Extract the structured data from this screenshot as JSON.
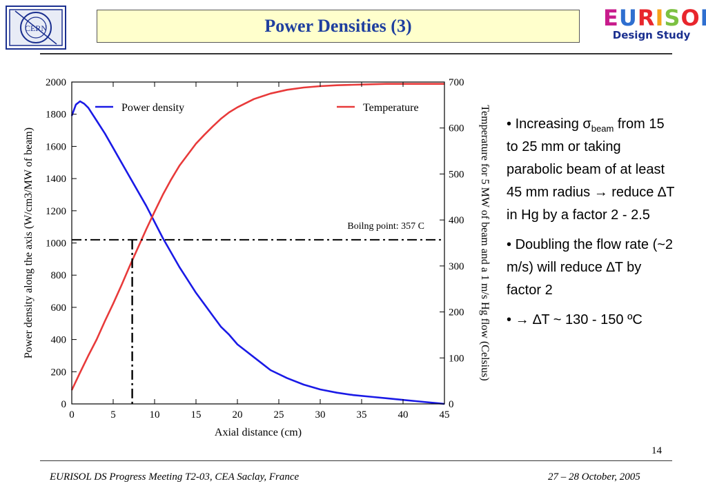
{
  "header": {
    "title": "Power Densities (3)",
    "left_logo_text": "CERN",
    "right_logo": {
      "letters": [
        {
          "ch": "E",
          "color": "#c81c8c"
        },
        {
          "ch": "U",
          "color": "#2f6fd0"
        },
        {
          "ch": "R",
          "color": "#e8262d"
        },
        {
          "ch": "I",
          "color": "#f5a31a"
        },
        {
          "ch": "S",
          "color": "#7cc142"
        },
        {
          "ch": "O",
          "color": "#e8262d"
        },
        {
          "ch": "L",
          "color": "#2f6fd0"
        }
      ],
      "subtitle": "Design Study"
    }
  },
  "bullets": {
    "b1_pre": "Increasing ",
    "b1_sigma": "σ",
    "b1_sub": "beam",
    "b1_post": " from 15 to 25 mm or taking parabolic beam of at least 45 mm radius → reduce ∆T in Hg by a factor 2 - 2.5",
    "b2": "Doubling the flow rate (~2 m/s) will reduce ∆T by factor 2",
    "b3": "→ ∆T ~ 130 - 150 ºC"
  },
  "footer": {
    "page_number": "14",
    "left": "EURISOL DS Progress Meeting T2-03, CEA Saclay, France",
    "right": "27 – 28 October, 2005"
  },
  "chart_data": {
    "type": "line",
    "xlabel": "Axial distance (cm)",
    "ylabel": "Power density along the axis (W/cm3/MW of beam)",
    "y2label": "Temperature for 5 MW of beam and a 1 m/s Hg flow (Celsius)",
    "xlim": [
      0,
      45
    ],
    "ylim": [
      0,
      2000
    ],
    "y2lim": [
      0,
      700
    ],
    "xticks": [
      0,
      5,
      10,
      15,
      20,
      25,
      30,
      35,
      40,
      45
    ],
    "yticks": [
      0,
      200,
      400,
      600,
      800,
      1000,
      1200,
      1400,
      1600,
      1800,
      2000
    ],
    "y2ticks": [
      0,
      100,
      200,
      300,
      400,
      500,
      600,
      700
    ],
    "legend": [
      {
        "name": "Power density",
        "color": "#1a1ae6"
      },
      {
        "name": "Temperature",
        "color": "#e83a3a"
      }
    ],
    "series": [
      {
        "name": "Power density",
        "axis": "left",
        "color": "#1a1ae6",
        "x": [
          0,
          0.5,
          1,
          1.5,
          2,
          3,
          4,
          5,
          6,
          7,
          8,
          9,
          10,
          11,
          12,
          13,
          14,
          15,
          16,
          17,
          18,
          19,
          20,
          22,
          24,
          26,
          28,
          30,
          32,
          34,
          36,
          38,
          40,
          42,
          44,
          45
        ],
        "values": [
          1790,
          1860,
          1880,
          1865,
          1840,
          1760,
          1680,
          1590,
          1500,
          1410,
          1320,
          1230,
          1130,
          1030,
          940,
          850,
          770,
          690,
          620,
          550,
          480,
          430,
          370,
          290,
          210,
          160,
          120,
          90,
          70,
          55,
          45,
          35,
          25,
          15,
          5,
          0
        ]
      },
      {
        "name": "Temperature",
        "axis": "right",
        "color": "#e83a3a",
        "x": [
          0,
          1,
          2,
          3,
          4,
          5,
          6,
          7,
          8,
          9,
          10,
          11,
          12,
          13,
          14,
          15,
          16,
          17,
          18,
          19,
          20,
          22,
          24,
          26,
          28,
          30,
          32,
          34,
          36,
          38,
          40,
          42,
          44,
          45
        ],
        "values": [
          30,
          68,
          105,
          140,
          180,
          218,
          258,
          300,
          340,
          380,
          418,
          455,
          488,
          518,
          542,
          566,
          585,
          603,
          620,
          634,
          645,
          663,
          675,
          683,
          688,
          691,
          693,
          694,
          695,
          696,
          696,
          696,
          696,
          696
        ]
      }
    ],
    "reference": {
      "label": "Boilng point: 357 C",
      "temperature": 357,
      "x": 7.3
    }
  }
}
